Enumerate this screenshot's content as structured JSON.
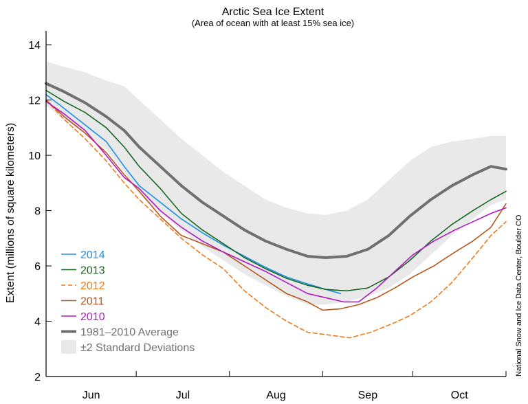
{
  "chart_data": {
    "type": "line",
    "title": "Arctic Sea Ice Extent",
    "subtitle": "(Area of ocean with at least 15% sea ice)",
    "ylabel": "Extent (millions of square kilometers)",
    "credit": "National Snow and Ice Data Center, Boulder CO",
    "ylim": [
      2,
      14.5
    ],
    "yticks": [
      "2",
      "4",
      "6",
      "8",
      "10",
      "12",
      "14"
    ],
    "xlim": [
      152,
      305
    ],
    "month_boundaries": [
      152,
      182,
      213,
      244,
      274,
      305
    ],
    "month_labels": [
      "Jun",
      "Jul",
      "Aug",
      "Sep",
      "Oct"
    ],
    "grid": false,
    "legend_position": "bottom-left",
    "series": [
      {
        "name": "2014",
        "color": "#1a8fe3",
        "dash": false,
        "x": [
          152,
          158,
          165,
          172,
          178,
          183,
          190,
          197,
          204,
          211,
          218,
          225,
          232,
          239,
          245,
          250
        ],
        "y": [
          12.2,
          11.7,
          11.1,
          10.5,
          9.6,
          8.9,
          8.3,
          7.7,
          7.2,
          6.75,
          6.35,
          5.95,
          5.6,
          5.35,
          5.15,
          5.0
        ]
      },
      {
        "name": "2013",
        "color": "#15671f",
        "dash": false,
        "x": [
          152,
          158,
          165,
          172,
          178,
          183,
          190,
          197,
          204,
          211,
          218,
          225,
          232,
          239,
          245,
          252,
          259,
          266,
          273,
          280,
          287,
          294,
          300,
          305
        ],
        "y": [
          12.35,
          11.95,
          11.55,
          11.0,
          10.3,
          9.6,
          8.8,
          7.9,
          7.3,
          6.8,
          6.3,
          5.9,
          5.55,
          5.3,
          5.15,
          5.1,
          5.2,
          5.6,
          6.2,
          6.9,
          7.5,
          8.0,
          8.4,
          8.7
        ]
      },
      {
        "name": "2012",
        "color": "#ef7a1c",
        "dash": true,
        "x": [
          152,
          158,
          165,
          172,
          178,
          183,
          190,
          197,
          204,
          211,
          218,
          225,
          232,
          239,
          246,
          253,
          260,
          267,
          273,
          280,
          287,
          294,
          300,
          305
        ],
        "y": [
          12.0,
          11.3,
          10.6,
          9.8,
          9.0,
          8.4,
          7.7,
          7.0,
          6.4,
          5.9,
          5.1,
          4.5,
          4.0,
          3.6,
          3.5,
          3.4,
          3.6,
          3.9,
          4.2,
          4.7,
          5.4,
          6.3,
          7.1,
          7.6
        ]
      },
      {
        "name": "2011",
        "color": "#b5561c",
        "dash": false,
        "x": [
          152,
          158,
          165,
          172,
          178,
          183,
          190,
          197,
          204,
          211,
          218,
          225,
          232,
          239,
          244,
          250,
          256,
          262,
          268,
          274,
          281,
          288,
          294,
          300,
          305
        ],
        "y": [
          12.0,
          11.4,
          10.8,
          10.1,
          9.3,
          8.7,
          7.8,
          7.1,
          6.8,
          6.5,
          6.0,
          5.5,
          5.0,
          4.7,
          4.4,
          4.45,
          4.6,
          4.85,
          5.2,
          5.6,
          6.0,
          6.5,
          6.9,
          7.4,
          8.25
        ]
      },
      {
        "name": "2010",
        "color": "#b018c2",
        "dash": false,
        "x": [
          152,
          158,
          165,
          172,
          178,
          183,
          190,
          197,
          204,
          211,
          218,
          225,
          232,
          239,
          245,
          251,
          256,
          262,
          268,
          274,
          281,
          288,
          294,
          300,
          305
        ],
        "y": [
          11.95,
          11.5,
          10.9,
          10.0,
          9.2,
          8.8,
          8.0,
          7.4,
          6.9,
          6.5,
          6.15,
          5.8,
          5.4,
          5.0,
          4.85,
          4.7,
          4.7,
          5.2,
          5.8,
          6.4,
          6.9,
          7.3,
          7.6,
          7.9,
          8.1
        ]
      },
      {
        "name": "1981–2010 Average",
        "color": "#707070",
        "dash": false,
        "x": [
          152,
          158,
          165,
          172,
          178,
          183,
          190,
          197,
          204,
          211,
          218,
          225,
          232,
          239,
          245,
          252,
          259,
          266,
          273,
          280,
          287,
          294,
          300,
          305
        ],
        "y": [
          12.6,
          12.3,
          11.9,
          11.4,
          10.9,
          10.3,
          9.6,
          8.9,
          8.3,
          7.8,
          7.3,
          6.9,
          6.6,
          6.35,
          6.3,
          6.35,
          6.6,
          7.1,
          7.8,
          8.4,
          8.9,
          9.3,
          9.6,
          9.5
        ]
      }
    ],
    "band": {
      "name": "±2 Standard Deviations",
      "color": "#e9e9e9",
      "x": [
        152,
        158,
        165,
        172,
        178,
        183,
        190,
        197,
        204,
        211,
        218,
        225,
        232,
        239,
        245,
        252,
        259,
        266,
        273,
        280,
        287,
        294,
        300,
        305
      ],
      "upper": [
        13.4,
        13.2,
        13.0,
        12.7,
        12.5,
        12.0,
        11.3,
        10.6,
        10.0,
        9.4,
        8.9,
        8.4,
        8.1,
        7.9,
        7.85,
        8.0,
        8.4,
        9.1,
        9.8,
        10.3,
        10.5,
        10.6,
        10.7,
        10.7
      ],
      "lower": [
        11.8,
        11.3,
        10.8,
        10.2,
        9.4,
        8.6,
        7.9,
        7.3,
        6.7,
        6.2,
        5.7,
        5.3,
        4.9,
        4.6,
        4.6,
        4.7,
        4.9,
        5.2,
        5.7,
        6.4,
        7.1,
        7.7,
        8.2,
        8.4
      ]
    }
  }
}
